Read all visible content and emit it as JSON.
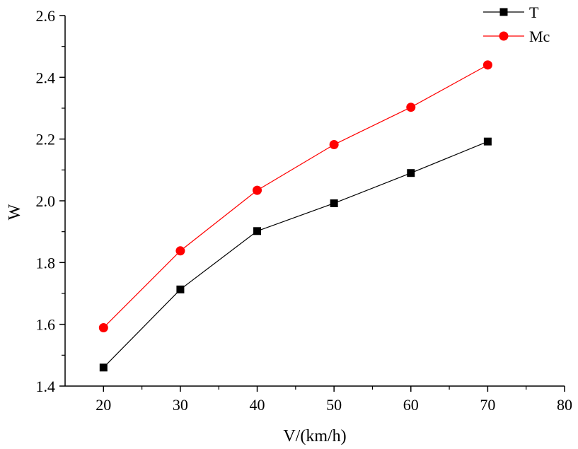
{
  "chart_data": {
    "type": "line",
    "xlabel": "V/(km/h)",
    "ylabel": "W",
    "xlim": [
      15,
      80
    ],
    "ylim": [
      1.4,
      2.6
    ],
    "xticks": [
      "20",
      "30",
      "40",
      "50",
      "60",
      "70",
      "80"
    ],
    "yticks": [
      "1.4",
      "1.6",
      "1.8",
      "2.0",
      "2.2",
      "2.4",
      "2.6"
    ],
    "x": [
      20,
      30,
      40,
      50,
      60,
      70
    ],
    "series": [
      {
        "name": "T",
        "marker": "square",
        "color": "#000000",
        "values": [
          1.46,
          1.713,
          1.902,
          1.992,
          2.09,
          2.192
        ]
      },
      {
        "name": "Mc",
        "marker": "circle",
        "color": "#ff0000",
        "values": [
          1.589,
          1.838,
          2.034,
          2.182,
          2.303,
          2.44
        ]
      }
    ],
    "legend_position": "top-right",
    "grid": false
  }
}
